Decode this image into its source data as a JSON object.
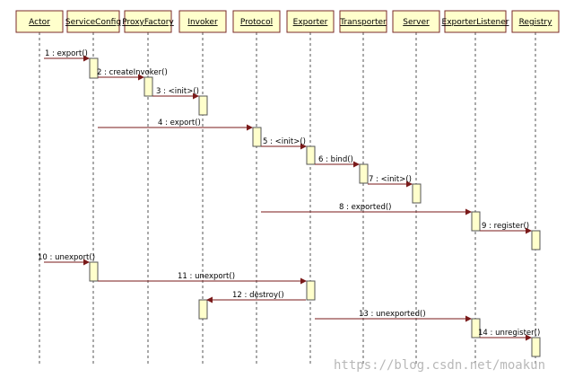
{
  "lifelines": [
    {
      "id": "actor",
      "label": "Actor"
    },
    {
      "id": "serviceconfig",
      "label": "ServiceConfig"
    },
    {
      "id": "proxyfactory",
      "label": "ProxyFactory"
    },
    {
      "id": "invoker",
      "label": "Invoker"
    },
    {
      "id": "protocol",
      "label": "Protocol"
    },
    {
      "id": "exporter",
      "label": "Exporter"
    },
    {
      "id": "transporter",
      "label": "Transporter"
    },
    {
      "id": "server",
      "label": "Server"
    },
    {
      "id": "exporterlistener",
      "label": "ExporterListener"
    },
    {
      "id": "registry",
      "label": "Registry"
    }
  ],
  "messages": [
    {
      "seq": 1,
      "label": "1 : export()",
      "from": "actor",
      "to": "serviceconfig"
    },
    {
      "seq": 2,
      "label": "2 : createInvoker()",
      "from": "serviceconfig",
      "to": "proxyfactory"
    },
    {
      "seq": 3,
      "label": "3 : <init>()",
      "from": "proxyfactory",
      "to": "invoker"
    },
    {
      "seq": 4,
      "label": "4 : export()",
      "from": "serviceconfig",
      "to": "protocol"
    },
    {
      "seq": 5,
      "label": "5 : <init>()",
      "from": "protocol",
      "to": "exporter"
    },
    {
      "seq": 6,
      "label": "6 : bind()",
      "from": "exporter",
      "to": "transporter"
    },
    {
      "seq": 7,
      "label": "7 : <init>()",
      "from": "transporter",
      "to": "server"
    },
    {
      "seq": 8,
      "label": "8 : exported()",
      "from": "protocol",
      "to": "exporterlistener"
    },
    {
      "seq": 9,
      "label": "9 : register()",
      "from": "exporterlistener",
      "to": "registry"
    },
    {
      "seq": 10,
      "label": "10 : unexport()",
      "from": "actor",
      "to": "serviceconfig"
    },
    {
      "seq": 11,
      "label": "11 : unexport()",
      "from": "serviceconfig",
      "to": "exporter"
    },
    {
      "seq": 12,
      "label": "12 : destroy()",
      "from": "exporter",
      "to": "invoker"
    },
    {
      "seq": 13,
      "label": "13 : unexported()",
      "from": "exporter",
      "to": "exporterlistener"
    },
    {
      "seq": 14,
      "label": "14 : unregister()",
      "from": "exporterlistener",
      "to": "registry"
    }
  ],
  "watermark": "https://blog.csdn.net/moakun",
  "colors": {
    "box_fill": "#ffffcc",
    "box_border": "#7a2a2a",
    "message_line": "#7a1a1a",
    "lifeline": "#555555",
    "watermark": "#b8b8b8"
  }
}
